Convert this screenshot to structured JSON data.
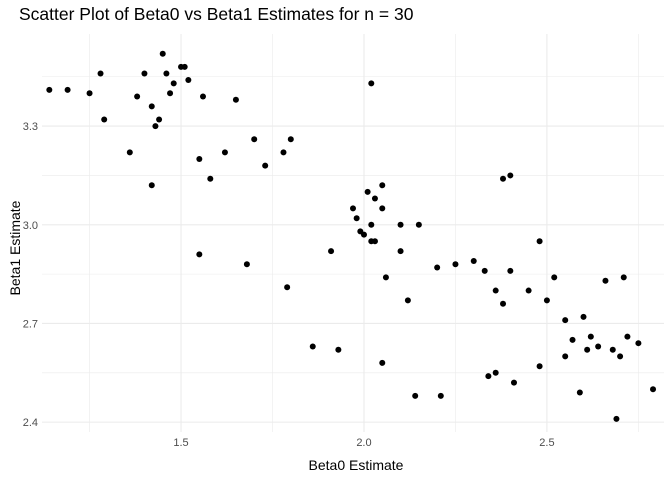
{
  "chart_data": {
    "type": "scatter",
    "title": "Scatter Plot of Beta0 vs Beta1 Estimates for n = 30",
    "xlabel": "Beta0 Estimate",
    "ylabel": "Beta1 Estimate",
    "xlim": [
      1.12,
      2.82
    ],
    "ylim": [
      2.37,
      3.58
    ],
    "xticks": [
      "1.5",
      "2.0",
      "2.5"
    ],
    "yticks": [
      "2.4",
      "2.7",
      "3.0",
      "3.3"
    ],
    "grid": true,
    "legend": "none",
    "point_color": "#000000",
    "grid_color": "#ebebeb",
    "series": [
      {
        "x": [
          1.14,
          1.19,
          1.25,
          1.28,
          1.29,
          1.36,
          1.38,
          1.4,
          1.42,
          1.42,
          1.43,
          1.44,
          1.45,
          1.46,
          1.47,
          1.48,
          1.5,
          1.51,
          1.52,
          1.55,
          1.56,
          1.58,
          1.62,
          1.65,
          1.7,
          1.73,
          1.78,
          1.8,
          2.02,
          1.97,
          1.98,
          1.99,
          2.0,
          2.01,
          2.02,
          2.03,
          2.05,
          2.1,
          2.15,
          2.2,
          2.25,
          2.3,
          2.33,
          2.36,
          2.38,
          2.4,
          2.45,
          2.5,
          2.52,
          2.55,
          2.6,
          2.62,
          2.64,
          2.68,
          2.7,
          2.72,
          2.75,
          2.79,
          2.69,
          2.71,
          2.59,
          2.36,
          2.21,
          2.14,
          2.05,
          1.93,
          1.86,
          1.79,
          1.55,
          2.02,
          2.03,
          2.38,
          2.4,
          2.34,
          2.41,
          2.48,
          2.55,
          2.57,
          2.61,
          2.66,
          2.48,
          2.1,
          2.06,
          2.12,
          1.91,
          1.68,
          2.05
        ],
        "y": [
          3.41,
          3.41,
          3.4,
          3.46,
          3.32,
          3.22,
          3.39,
          3.46,
          3.36,
          3.12,
          3.3,
          3.32,
          3.52,
          3.46,
          3.4,
          3.43,
          3.48,
          3.48,
          3.44,
          3.2,
          3.39,
          3.14,
          3.22,
          3.38,
          3.26,
          3.18,
          3.22,
          3.26,
          3.43,
          3.05,
          3.02,
          2.98,
          2.97,
          3.1,
          3.0,
          2.95,
          3.05,
          2.92,
          3.0,
          2.87,
          2.88,
          2.89,
          2.86,
          2.8,
          2.76,
          2.86,
          2.8,
          2.77,
          2.84,
          2.71,
          2.72,
          2.66,
          2.63,
          2.62,
          2.6,
          2.66,
          2.64,
          2.5,
          2.41,
          2.84,
          2.49,
          2.55,
          2.48,
          2.48,
          2.58,
          2.62,
          2.63,
          2.81,
          2.91,
          2.95,
          3.08,
          3.14,
          3.15,
          2.54,
          2.52,
          2.57,
          2.6,
          2.65,
          2.62,
          2.83,
          2.95,
          3.0,
          2.84,
          2.77,
          2.92,
          2.88,
          3.12
        ]
      }
    ]
  }
}
